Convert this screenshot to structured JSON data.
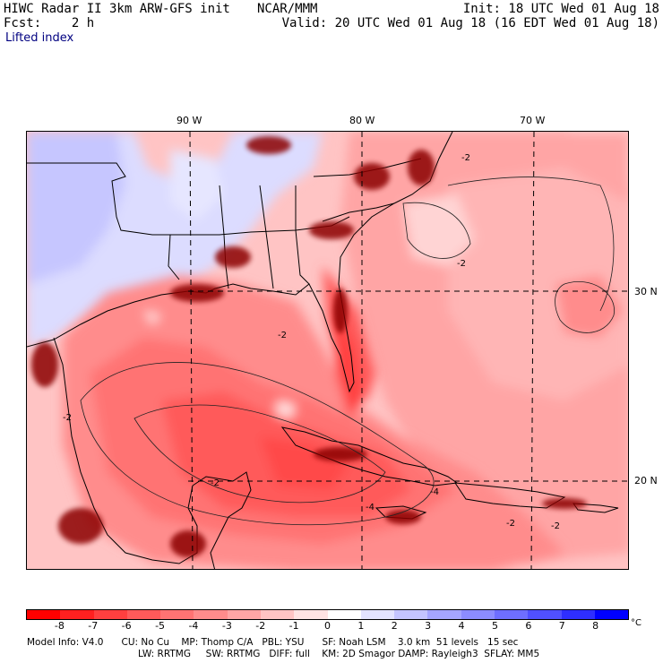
{
  "header": {
    "title": "HIWC Radar II 3km ARW-GFS init",
    "org": "NCAR/MMM",
    "init": "Init: 18 UTC Wed 01 Aug 18",
    "fcst": "Fcst:    2 h",
    "valid": "Valid: 20 UTC Wed 01 Aug 18 (16 EDT Wed 01 Aug 18)",
    "field": "Lifted index"
  },
  "map": {
    "lon_labels": [
      "90 W",
      "80 W",
      "70 W"
    ],
    "lat_labels": [
      "30 N",
      "20 N"
    ],
    "contour_labels": [
      "-2",
      "-2",
      "-2",
      "-2",
      "-2",
      "-4",
      "-4",
      "-2",
      "-2"
    ]
  },
  "colorbar": {
    "labels": [
      "-8",
      "-7",
      "-6",
      "-5",
      "-4",
      "-3",
      "-2",
      "-1",
      "0",
      "1",
      "2",
      "3",
      "4",
      "5",
      "6",
      "7",
      "8"
    ],
    "unit": "°C",
    "colors": [
      "#ff0000",
      "#ff2020",
      "#ff3f3f",
      "#ff5a5a",
      "#ff7373",
      "#ff8c8c",
      "#ffa5a5",
      "#ffc4c4",
      "#ffe3e3",
      "#ffffff",
      "#e3e3ff",
      "#c4c4ff",
      "#a5a5ff",
      "#8c8cff",
      "#6e6eff",
      "#5050ff",
      "#2e2eff",
      "#0000ff"
    ]
  },
  "footer": {
    "line1": "Model Info: V4.0      CU: No Cu    MP: Thomp C/A   PBL: YSU      SF: Noah LSM    3.0 km  51 levels   15 sec",
    "line2": "LW: RRTMG     SW: RRTMG   DIFF: full    KM: 2D Smagor DAMP: Rayleigh3  SFLAY: MM5"
  }
}
